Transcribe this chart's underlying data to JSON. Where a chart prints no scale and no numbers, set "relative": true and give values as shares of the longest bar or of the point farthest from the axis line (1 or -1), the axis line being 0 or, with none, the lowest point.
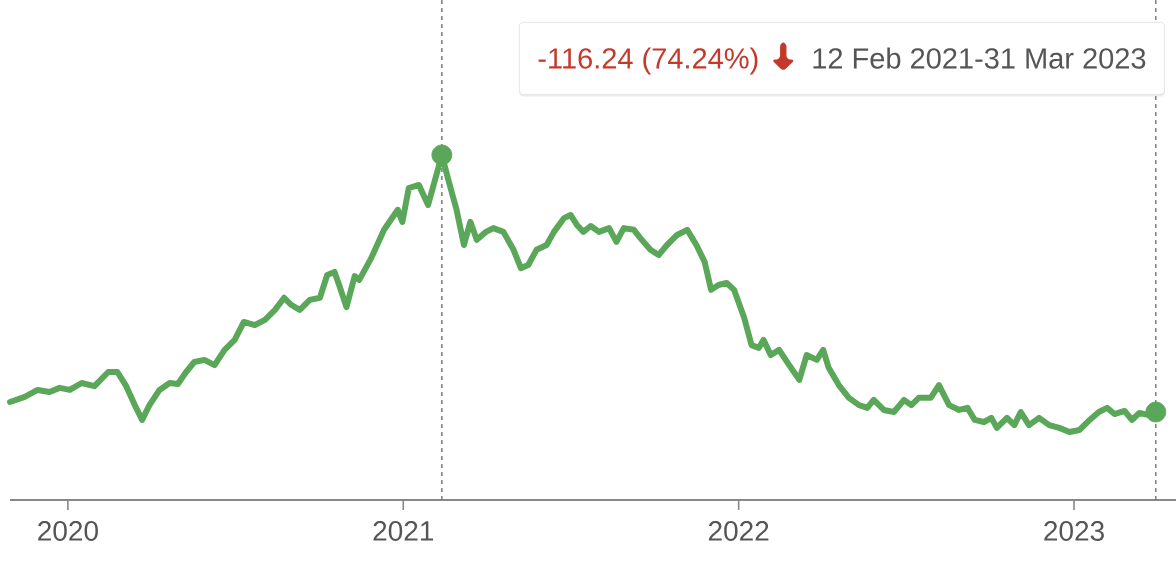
{
  "chart_data": {
    "type": "line",
    "relative": true,
    "annotations": [
      "-116.24 (74.24%)",
      "12 Feb 2021-31 Mar 2023"
    ],
    "xlim": [
      "2019-10-30",
      "2023-04-22"
    ],
    "xticks": [
      "2020",
      "2021",
      "2022",
      "2023"
    ],
    "ref_lines": [
      {
        "axis": "x",
        "value": "2021-02-12",
        "color": "#777777",
        "line_style": "dotted"
      },
      {
        "axis": "x",
        "value": "2023-03-31",
        "color": "#777777",
        "line_style": "dotted"
      }
    ],
    "series": [
      {
        "color": "#5aa75a",
        "x": [
          "2019-10-30",
          "2019-11-15",
          "2019-11-29",
          "2019-12-12",
          "2019-12-23",
          "2020-01-03",
          "2020-01-16",
          "2020-01-30",
          "2020-02-14",
          "2020-02-24",
          "2020-03-04",
          "2020-03-14",
          "2020-03-22",
          "2020-03-30",
          "2020-04-10",
          "2020-04-21",
          "2020-04-30",
          "2020-05-09",
          "2020-05-18",
          "2020-05-29",
          "2020-06-09",
          "2020-06-20",
          "2020-07-01",
          "2020-07-11",
          "2020-07-23",
          "2020-08-03",
          "2020-08-14",
          "2020-08-24",
          "2020-09-01",
          "2020-09-10",
          "2020-09-21",
          "2020-10-02",
          "2020-10-10",
          "2020-10-18",
          "2020-10-23",
          "2020-10-31",
          "2020-11-09",
          "2020-11-14",
          "2020-11-27",
          "2020-12-11",
          "2020-12-26",
          "2020-12-31",
          "2021-01-07",
          "2021-01-18",
          "2021-01-28",
          "2021-02-06",
          "2021-02-12",
          "2021-02-19",
          "2021-02-28",
          "2021-03-08",
          "2021-03-15",
          "2021-03-22",
          "2021-04-01",
          "2021-04-09",
          "2021-04-20",
          "2021-05-01",
          "2021-05-09",
          "2021-05-17",
          "2021-05-26",
          "2021-06-06",
          "2021-06-14",
          "2021-06-25",
          "2021-07-02",
          "2021-07-09",
          "2021-07-16",
          "2021-07-24",
          "2021-08-02",
          "2021-08-13",
          "2021-08-21",
          "2021-08-29",
          "2021-09-09",
          "2021-09-16",
          "2021-09-27",
          "2021-10-06",
          "2021-10-15",
          "2021-10-26",
          "2021-11-06",
          "2021-11-16",
          "2021-11-25",
          "2021-12-02",
          "2021-12-10",
          "2021-12-19",
          "2021-12-27",
          "2022-01-07",
          "2022-01-15",
          "2022-01-23",
          "2022-01-28",
          "2022-02-05",
          "2022-02-14",
          "2022-02-25",
          "2022-03-08",
          "2022-03-16",
          "2022-03-27",
          "2022-04-03",
          "2022-04-09",
          "2022-04-20",
          "2022-05-01",
          "2022-05-12",
          "2022-05-21",
          "2022-05-28",
          "2022-06-08",
          "2022-06-19",
          "2022-06-30",
          "2022-07-08",
          "2022-07-16",
          "2022-07-29",
          "2022-08-07",
          "2022-08-18",
          "2022-08-29",
          "2022-09-07",
          "2022-09-15",
          "2022-09-25",
          "2022-10-03",
          "2022-10-09",
          "2022-10-20",
          "2022-10-28",
          "2022-11-04",
          "2022-11-13",
          "2022-11-24",
          "2022-12-05",
          "2022-12-16",
          "2022-12-27",
          "2023-01-07",
          "2023-01-18",
          "2023-01-28",
          "2023-02-06",
          "2023-02-14",
          "2023-02-25",
          "2023-03-05",
          "2023-03-13",
          "2023-03-24",
          "2023-03-31"
        ],
        "values": [
          0.284,
          0.299,
          0.319,
          0.313,
          0.325,
          0.319,
          0.339,
          0.33,
          0.371,
          0.371,
          0.333,
          0.275,
          0.232,
          0.275,
          0.319,
          0.339,
          0.336,
          0.371,
          0.4,
          0.406,
          0.391,
          0.435,
          0.464,
          0.516,
          0.507,
          0.522,
          0.551,
          0.586,
          0.565,
          0.551,
          0.58,
          0.586,
          0.652,
          0.661,
          0.623,
          0.559,
          0.649,
          0.638,
          0.701,
          0.783,
          0.841,
          0.806,
          0.904,
          0.913,
          0.855,
          0.942,
          1.0,
          0.928,
          0.841,
          0.739,
          0.806,
          0.754,
          0.777,
          0.788,
          0.777,
          0.725,
          0.672,
          0.681,
          0.725,
          0.739,
          0.777,
          0.817,
          0.826,
          0.797,
          0.777,
          0.794,
          0.777,
          0.788,
          0.748,
          0.788,
          0.783,
          0.759,
          0.725,
          0.71,
          0.739,
          0.768,
          0.783,
          0.739,
          0.69,
          0.609,
          0.623,
          0.629,
          0.609,
          0.528,
          0.449,
          0.441,
          0.464,
          0.42,
          0.435,
          0.391,
          0.348,
          0.42,
          0.406,
          0.435,
          0.383,
          0.333,
          0.296,
          0.275,
          0.267,
          0.29,
          0.261,
          0.255,
          0.29,
          0.275,
          0.296,
          0.296,
          0.333,
          0.275,
          0.261,
          0.267,
          0.232,
          0.226,
          0.238,
          0.209,
          0.238,
          0.217,
          0.255,
          0.217,
          0.238,
          0.217,
          0.209,
          0.197,
          0.203,
          0.232,
          0.255,
          0.267,
          0.249,
          0.258,
          0.232,
          0.252,
          0.246,
          0.255
        ]
      },
      {
        "type": "scatter",
        "color": "#5aa75a",
        "marker": "circle",
        "x": [
          "2021-02-12",
          "2023-03-31"
        ],
        "values": [
          1.0,
          0.255
        ]
      }
    ]
  }
}
